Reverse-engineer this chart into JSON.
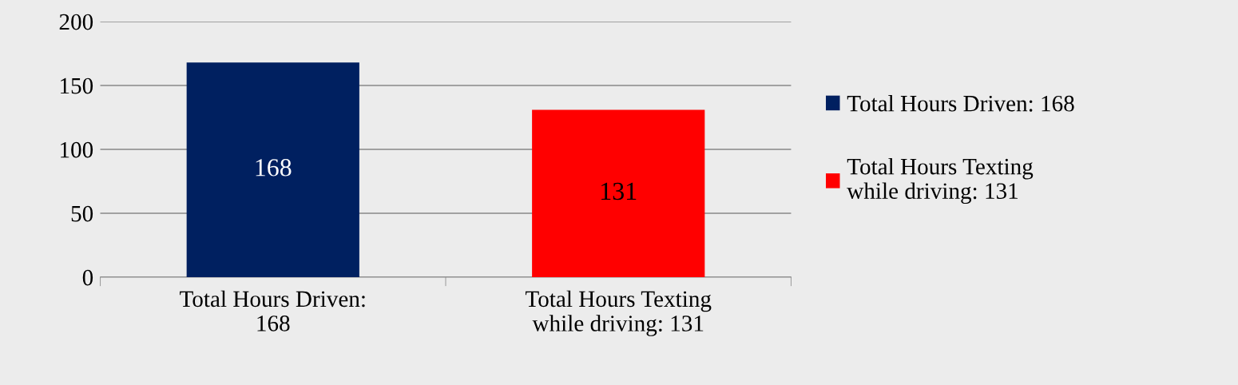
{
  "chart_data": {
    "type": "bar",
    "categories": [
      "Total Hours Driven: 168",
      "Total Hours Texting while driving: 131"
    ],
    "series": [
      {
        "name": "Total Hours Driven: 168",
        "color": "#002060",
        "values": [
          168,
          null
        ]
      },
      {
        "name": "Total Hours Texting while driving: 131",
        "color": "#ff0000",
        "values": [
          null,
          131
        ]
      }
    ],
    "ylim": [
      0,
      200
    ],
    "yticks": [
      0,
      50,
      100,
      150,
      200
    ],
    "grid": "y",
    "legend": "right",
    "data_labels": true
  }
}
